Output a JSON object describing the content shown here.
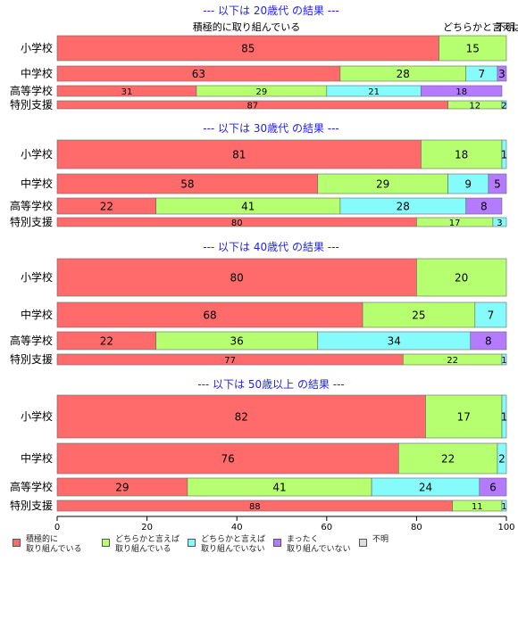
{
  "chart_data": {
    "type": "bar",
    "orientation": "horizontal",
    "stacked": true,
    "xlim": [
      0,
      100
    ],
    "x_ticks": [
      "0",
      "20",
      "40",
      "60",
      "80",
      "100"
    ],
    "legend_position": "bottom",
    "categories": [
      "積極的に\n取り組んでいる",
      "どちらかと言えば\n取り組んでいる",
      "どちらかと言えば\n取り組んでいない",
      "まったく\n取り組んでいない",
      "不明"
    ],
    "colors": [
      "#ff6b6b",
      "#b6ff70",
      "#86fbfb",
      "#b47aff",
      "#dddddd"
    ],
    "top_header_labels": [
      "積極的に取り組んでいる",
      "どちらかと言えば",
      "不明"
    ],
    "panels": [
      {
        "title": "--- 以下は 20歳代 の結果 ---",
        "rows": [
          {
            "label": "小学校",
            "values": [
              85,
              15,
              0,
              0,
              0
            ]
          },
          {
            "label": "中学校",
            "values": [
              63,
              28,
              7,
              3,
              0
            ]
          },
          {
            "label": "高等学校",
            "values": [
              31,
              29,
              21,
              18,
              0
            ]
          },
          {
            "label": "特別支援",
            "values": [
              87,
              12,
              2,
              0,
              0
            ]
          }
        ]
      },
      {
        "title": "--- 以下は 30歳代 の結果 ---",
        "rows": [
          {
            "label": "小学校",
            "values": [
              81,
              18,
              1,
              0,
              0
            ]
          },
          {
            "label": "中学校",
            "values": [
              58,
              29,
              9,
              5,
              0
            ]
          },
          {
            "label": "高等学校",
            "values": [
              22,
              41,
              28,
              8,
              0
            ]
          },
          {
            "label": "特別支援",
            "values": [
              80,
              17,
              3,
              0,
              0
            ]
          }
        ]
      },
      {
        "title": "--- 以下は 40歳代 の結果 ---",
        "rows": [
          {
            "label": "小学校",
            "values": [
              80,
              20,
              0,
              0,
              0
            ]
          },
          {
            "label": "中学校",
            "values": [
              68,
              25,
              7,
              0,
              0
            ]
          },
          {
            "label": "高等学校",
            "values": [
              22,
              36,
              34,
              8,
              0
            ]
          },
          {
            "label": "特別支援",
            "values": [
              77,
              22,
              1,
              0,
              0
            ]
          }
        ]
      },
      {
        "title": "--- 以下は 50歳以上 の結果 ---",
        "rows": [
          {
            "label": "小学校",
            "values": [
              82,
              17,
              1,
              0,
              0
            ]
          },
          {
            "label": "中学校",
            "values": [
              76,
              22,
              2,
              0,
              0
            ]
          },
          {
            "label": "高等学校",
            "values": [
              29,
              41,
              24,
              6,
              0
            ]
          },
          {
            "label": "特別支援",
            "values": [
              88,
              11,
              1,
              0,
              0
            ]
          }
        ]
      }
    ]
  }
}
